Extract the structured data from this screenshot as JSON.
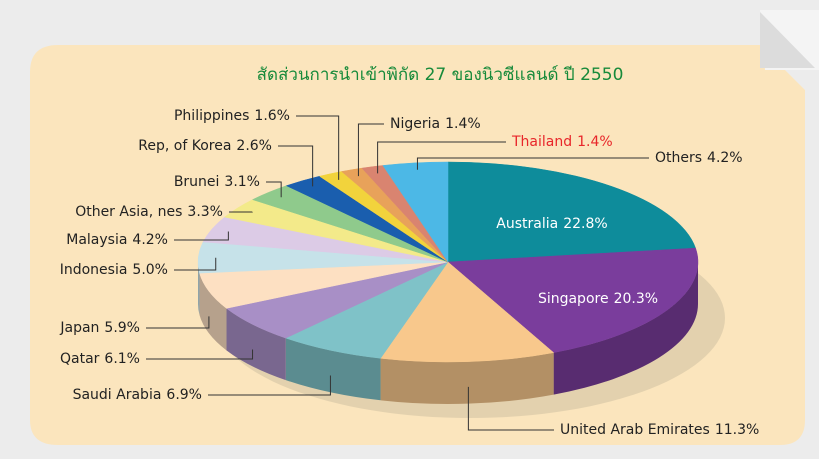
{
  "chart_data": {
    "type": "pie",
    "title": "สัดส่วนการนำเข้าพิกัด 27 ของนิวซีแลนด์ ปี 2550",
    "categories": [
      "Australia",
      "Singapore",
      "United Arab Emirates",
      "Saudi Arabia",
      "Qatar",
      "Japan",
      "Indonesia",
      "Malaysia",
      "Other Asia, nes",
      "Brunei",
      "Rep, of Korea",
      "Philippines",
      "Nigeria",
      "Thailand",
      "Others"
    ],
    "values": [
      22.8,
      20.3,
      11.3,
      6.9,
      6.1,
      5.9,
      5.0,
      4.2,
      3.3,
      3.1,
      2.6,
      1.6,
      1.4,
      1.4,
      4.2
    ],
    "value_labels": [
      "22.8%",
      "20.3%",
      "11.3%",
      "6.9%",
      "6.1%",
      "5.9%",
      "5.0%",
      "4.2%",
      "3.3%",
      "3.1%",
      "2.6%",
      "1.6%",
      "1.4%",
      "1.4%",
      "4.2%"
    ],
    "colors": [
      "#0e8c9b",
      "#7a3d9c",
      "#f8c88c",
      "#7fc2c8",
      "#a88fc6",
      "#fde0c2",
      "#c6e2e9",
      "#dccbe6",
      "#f3ea8a",
      "#8fca8c",
      "#1a5eae",
      "#f2d33c",
      "#e8a25a",
      "#d98470",
      "#4cb8e6"
    ],
    "label_colors": [
      "#ffffff",
      "#ffffff",
      "#222222",
      "#222222",
      "#222222",
      "#222222",
      "#222222",
      "#222222",
      "#222222",
      "#222222",
      "#222222",
      "#222222",
      "#222222",
      "#e8262a",
      "#222222"
    ]
  }
}
